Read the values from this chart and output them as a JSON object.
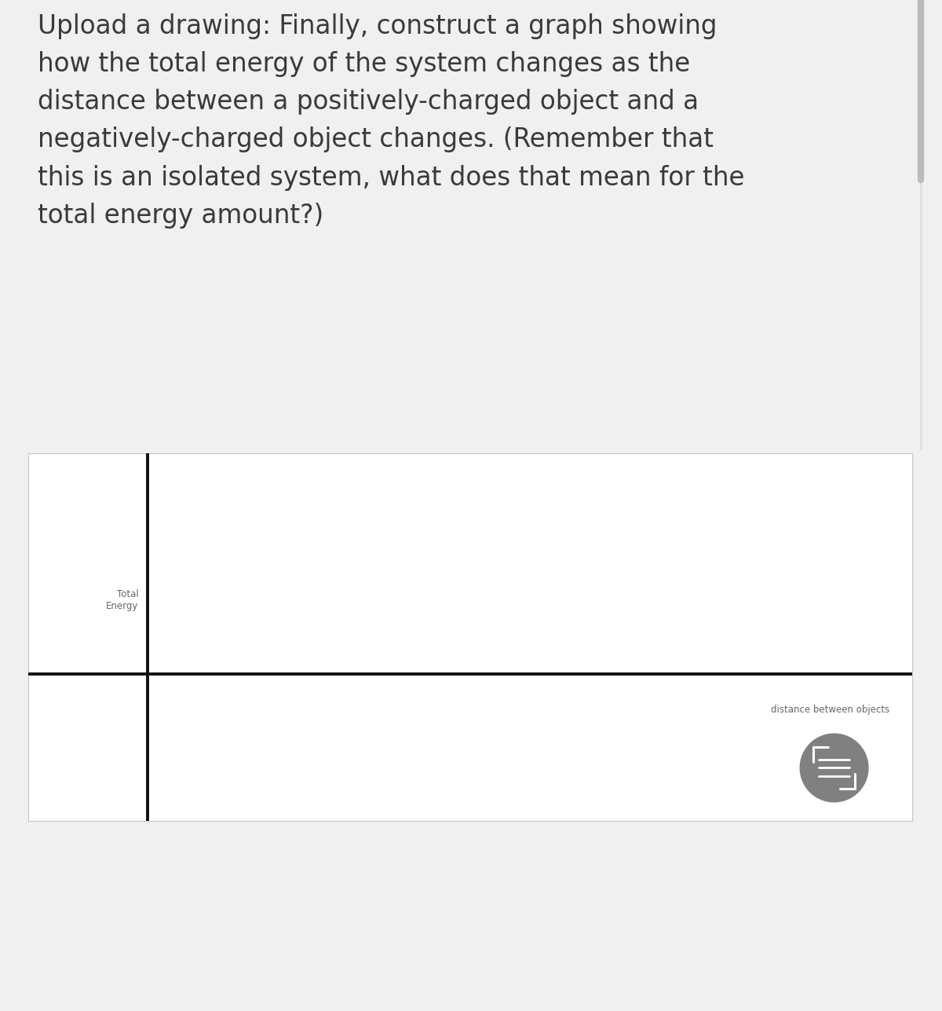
{
  "page_bg_color": "#f0f0f0",
  "graph_bg_color": "#ffffff",
  "graph_border_color": "#c8c8c8",
  "text_color": "#3a3a3a",
  "axis_color": "#111111",
  "scrollbar_color": "#bbbbbb",
  "description_text": "Upload a drawing: Finally, construct a graph showing\nhow the total energy of the system changes as the\ndistance between a positively-charged object and a\nnegatively-charged object changes. (Remember that\nthis is an isolated system, what does that mean for the\ntotal energy amount?)",
  "ylabel": "Total\nEnergy",
  "xlabel": "distance between objects",
  "ylabel_fontsize": 8.5,
  "xlabel_fontsize": 8.5,
  "description_fontsize": 23.5,
  "axis_linewidth": 2.8,
  "icon_color": "#808080",
  "icon_line_color": "#ffffff",
  "page_width": 12.0,
  "page_height": 12.87
}
